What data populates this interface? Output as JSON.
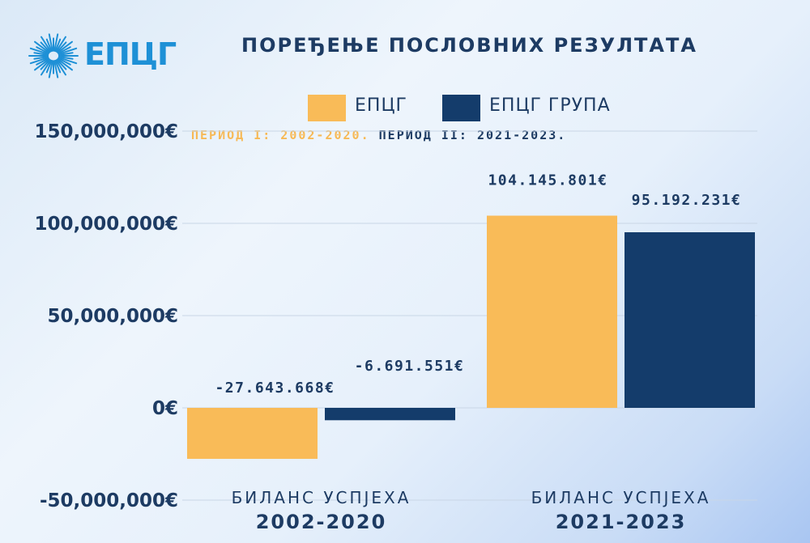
{
  "brand": {
    "logo_text": "ЕПЦГ",
    "logo_color": "#1e90d6"
  },
  "colors": {
    "epcg": "#f9bb58",
    "epcg_group": "#143c6b",
    "text_dark": "#1d3b63",
    "period1_text": "#f7b955"
  },
  "chart_data": {
    "type": "bar",
    "title": "ПОРЕЂЕЊЕ ПОСЛОВНИХ РЕЗУЛТАТА",
    "subtitle_period1": "ПЕРИОД I: 2002-2020.",
    "subtitle_period2": "ПЕРИОД II: 2021-2023.",
    "legend_position": "top-center",
    "grid": true,
    "categories": [
      {
        "line1": "БИЛАНС УСПЈЕХА",
        "line2": "2002-2020"
      },
      {
        "line1": "БИЛАНС УСПЈЕХА",
        "line2": "2021-2023"
      }
    ],
    "series": [
      {
        "name": "ЕПЦГ",
        "values": [
          -27643668,
          104145801
        ],
        "labels": [
          "-27.643.668€",
          "104.145.801€"
        ]
      },
      {
        "name": "ЕПЦГ ГРУПА",
        "values": [
          -6691551,
          95192231
        ],
        "labels": [
          "-6.691.551€",
          "95.192.231€"
        ]
      }
    ],
    "ylim": [
      -50000000,
      150000000
    ],
    "yticks": [
      {
        "value": 150000000,
        "label": "150,000,000€"
      },
      {
        "value": 100000000,
        "label": "100,000,000€"
      },
      {
        "value": 50000000,
        "label": "50,000,000€"
      },
      {
        "value": 0,
        "label": "0€"
      },
      {
        "value": -50000000,
        "label": "-50,000,000€"
      }
    ]
  }
}
